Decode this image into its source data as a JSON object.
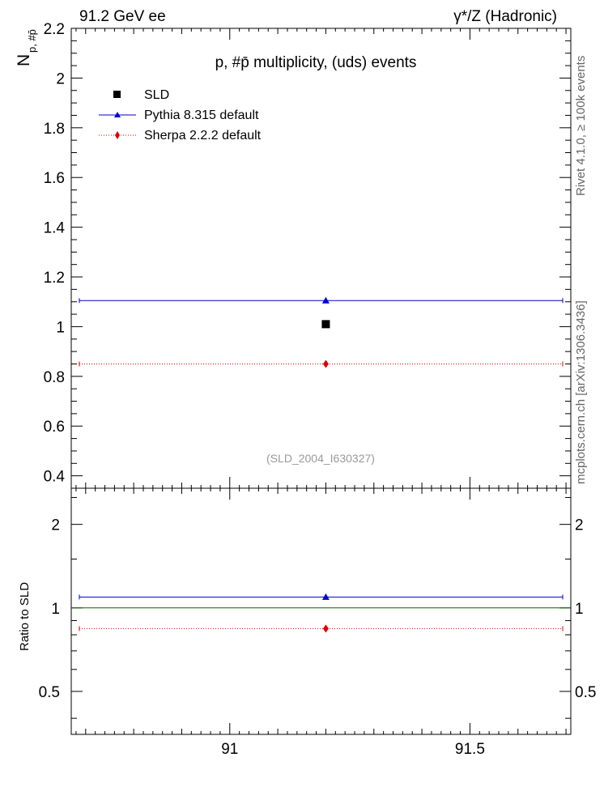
{
  "header": {
    "energy_label": "91.2 GeV ee",
    "process_label": "γ*/Z (Hadronic)"
  },
  "side_text": {
    "rivet": "Rivet 4.1.0, ≥ 100k events",
    "mcplots": "mcplots.cern.ch [arXiv:1306.3436]"
  },
  "chart_data": [
    {
      "type": "scatter",
      "title": "p, #p̄ multiplicity, (uds) events",
      "ylabel": "N",
      "ylabel_subscript": "p, #p̄",
      "xlim": [
        90.67,
        91.71
      ],
      "ylim": [
        0.35,
        2.2
      ],
      "y_ticks": [
        0.4,
        0.6,
        0.8,
        1,
        1.2,
        1.4,
        1.6,
        1.8,
        2,
        2.2
      ],
      "y_tick_labels": [
        "0.4",
        "0.6",
        "0.8",
        "1",
        "1.2",
        "1.4",
        "1.6",
        "1.8",
        "2",
        "2.2"
      ],
      "series": [
        {
          "name": "SLD",
          "x": [
            91.2
          ],
          "values": [
            1.01
          ],
          "color": "#000000",
          "marker": "square"
        },
        {
          "name": "Pythia 8.315 default",
          "x": [
            91.2
          ],
          "values": [
            1.105
          ],
          "xerr": [
            90.67,
            91.71
          ],
          "color": "#0000cc",
          "marker": "triangle"
        },
        {
          "name": "Sherpa 2.2.2 default",
          "x": [
            91.2
          ],
          "values": [
            0.85
          ],
          "xerr": [
            90.67,
            91.71
          ],
          "color": "#dd0000",
          "marker": "diamond"
        }
      ],
      "annotation": "(SLD_2004_I630327)"
    },
    {
      "type": "scatter",
      "ylabel": "Ratio to SLD",
      "xlim": [
        90.67,
        91.71
      ],
      "ylim": [
        0.35,
        2.7
      ],
      "y_scale": "log",
      "y_ticks": [
        0.5,
        1,
        2
      ],
      "y_tick_labels": [
        "0.5",
        "1",
        "2"
      ],
      "x_ticks": [
        91,
        91.5
      ],
      "x_tick_labels": [
        "91",
        "91.5"
      ],
      "series": [
        {
          "name": "SLD",
          "values": [
            1.0
          ],
          "color": "#006600"
        },
        {
          "name": "Pythia 8.315 default",
          "x": [
            91.2
          ],
          "values": [
            1.094
          ],
          "color": "#0000cc",
          "marker": "triangle"
        },
        {
          "name": "Sherpa 2.2.2 default",
          "x": [
            91.2
          ],
          "values": [
            0.842
          ],
          "color": "#dd0000",
          "marker": "diamond"
        }
      ]
    }
  ]
}
